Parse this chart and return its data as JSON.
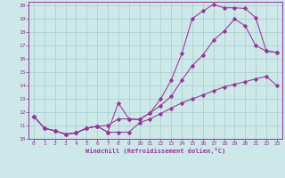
{
  "xlabel": "Windchill (Refroidissement éolien,°C)",
  "bg_color": "#cce8e8",
  "line_color": "#993399",
  "grid_color": "#aacccc",
  "xlim": [
    -0.5,
    23.5
  ],
  "ylim": [
    10,
    20.3
  ],
  "yticks": [
    10,
    11,
    12,
    13,
    14,
    15,
    16,
    17,
    18,
    19,
    20
  ],
  "xticks": [
    0,
    1,
    2,
    3,
    4,
    5,
    6,
    7,
    8,
    9,
    10,
    11,
    12,
    13,
    14,
    15,
    16,
    17,
    18,
    19,
    20,
    21,
    22,
    23
  ],
  "curve1_x": [
    0,
    1,
    2,
    3,
    4,
    5,
    6,
    7,
    8,
    9,
    10,
    11,
    12,
    13,
    14,
    15,
    16,
    17,
    18,
    19,
    20,
    21,
    22,
    23
  ],
  "curve1_y": [
    11.7,
    10.8,
    10.6,
    10.35,
    10.45,
    10.8,
    10.95,
    10.5,
    12.7,
    11.5,
    11.45,
    11.95,
    13.0,
    14.4,
    16.4,
    19.05,
    19.6,
    20.1,
    19.85,
    19.85,
    19.8,
    19.1,
    16.6,
    16.5
  ],
  "curve2_x": [
    0,
    1,
    2,
    3,
    4,
    5,
    6,
    7,
    8,
    9,
    10,
    11,
    12,
    13,
    14,
    15,
    16,
    17,
    18,
    19,
    20,
    21,
    22,
    23
  ],
  "curve2_y": [
    11.7,
    10.8,
    10.6,
    10.35,
    10.45,
    10.8,
    10.95,
    11.0,
    11.5,
    11.5,
    11.45,
    11.95,
    12.5,
    13.2,
    14.4,
    15.5,
    16.3,
    17.4,
    18.1,
    19.0,
    18.5,
    17.0,
    16.6,
    16.5
  ],
  "curve3_x": [
    0,
    1,
    2,
    3,
    4,
    5,
    6,
    7,
    8,
    9,
    10,
    11,
    12,
    13,
    14,
    15,
    16,
    17,
    18,
    19,
    20,
    21,
    22,
    23
  ],
  "curve3_y": [
    11.7,
    10.8,
    10.6,
    10.35,
    10.45,
    10.8,
    10.95,
    10.5,
    10.5,
    10.5,
    11.2,
    11.5,
    11.9,
    12.3,
    12.7,
    13.0,
    13.3,
    13.6,
    13.9,
    14.1,
    14.3,
    14.5,
    14.7,
    14.0
  ]
}
